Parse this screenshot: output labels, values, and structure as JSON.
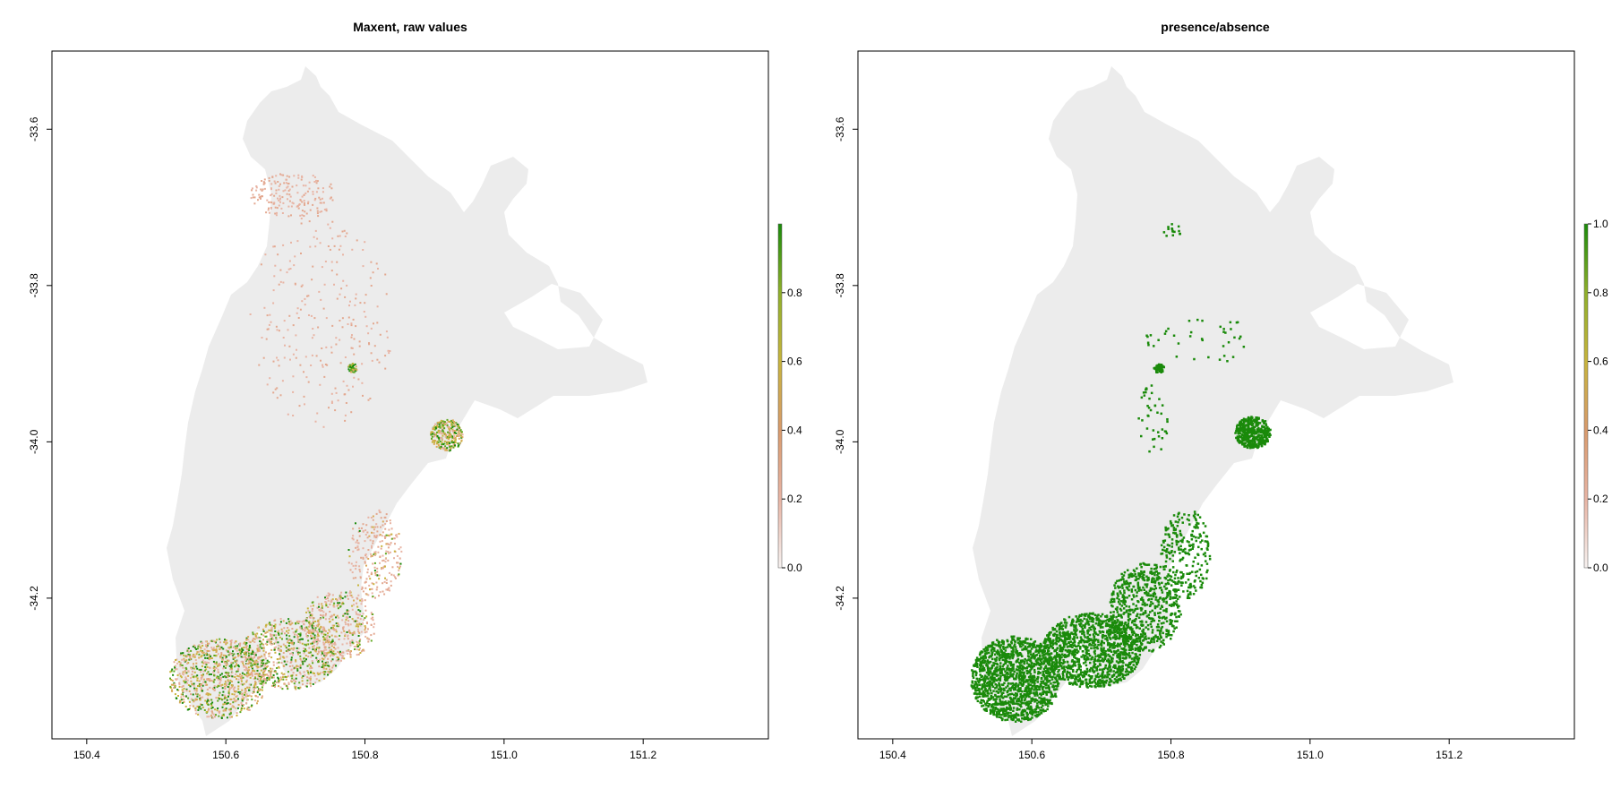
{
  "chart_data": [
    {
      "type": "heatmap",
      "title": "Maxent, raw values",
      "xlabel": "",
      "ylabel": "",
      "xlim": [
        150.35,
        151.38
      ],
      "ylim": [
        -34.38,
        -33.5
      ],
      "x_ticks": [
        "150.4",
        "150.6",
        "150.8",
        "151.0",
        "151.2"
      ],
      "x_tick_values": [
        150.4,
        150.6,
        150.8,
        151.0,
        151.2
      ],
      "y_ticks": [
        "-33.6",
        "-33.8",
        "-34.0",
        "-34.2"
      ],
      "y_tick_values": [
        -33.6,
        -33.8,
        -34.0,
        -34.2
      ],
      "legend": {
        "placement": "right",
        "range": [
          0,
          1
        ],
        "tick_labels": [
          "0.0",
          "0.2",
          "0.4",
          "0.6",
          "0.8"
        ],
        "tick_values": [
          0.0,
          0.2,
          0.4,
          0.6,
          0.8
        ],
        "colors": [
          "#f2f2f2",
          "#e8b4a4",
          "#d99a6c",
          "#c8b43c",
          "#8fb02a",
          "#1a8a0a"
        ]
      },
      "background_color": "#ececec"
    },
    {
      "type": "heatmap",
      "title": "presence/absence",
      "xlabel": "",
      "ylabel": "",
      "xlim": [
        150.35,
        151.38
      ],
      "ylim": [
        -34.38,
        -33.5
      ],
      "x_ticks": [
        "150.4",
        "150.6",
        "150.8",
        "151.0",
        "151.2"
      ],
      "x_tick_values": [
        150.4,
        150.6,
        150.8,
        151.0,
        151.2
      ],
      "y_ticks": [
        "-33.6",
        "-33.8",
        "-34.0",
        "-34.2"
      ],
      "y_tick_values": [
        -33.6,
        -33.8,
        -34.0,
        -34.2
      ],
      "legend": {
        "placement": "right",
        "range": [
          0,
          1
        ],
        "tick_labels": [
          "0.0",
          "0.2",
          "0.4",
          "0.6",
          "0.8",
          "1.0"
        ],
        "tick_values": [
          0.0,
          0.2,
          0.4,
          0.6,
          0.8,
          1.0
        ],
        "colors": [
          "#f2f2f2",
          "#e8b4a4",
          "#d99a6c",
          "#c8b43c",
          "#8fb02a",
          "#1a8a0a"
        ]
      },
      "background_color": "#ececec",
      "presence_color": "#1a8a0a"
    }
  ]
}
